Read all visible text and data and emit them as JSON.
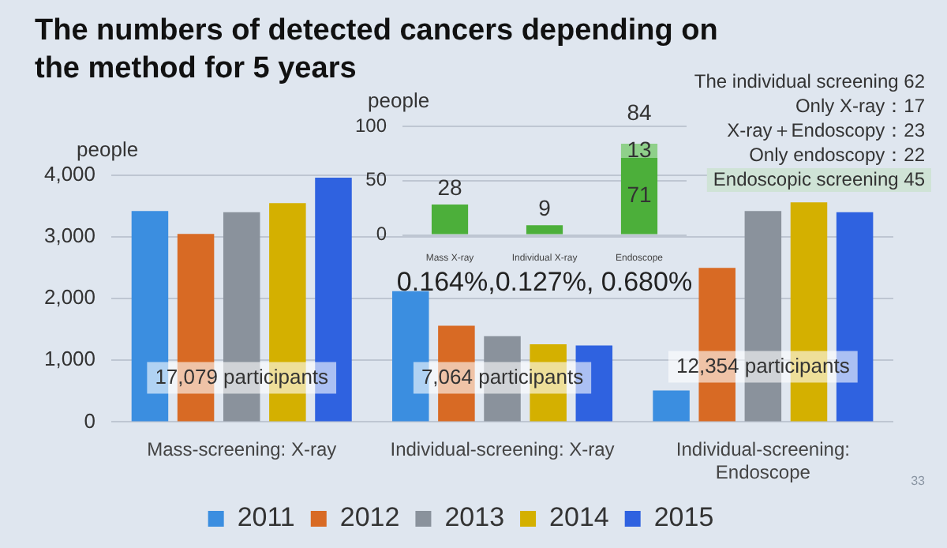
{
  "chart_data": [
    {
      "type": "bar",
      "title": "The numbers of detected cancers depending on the method for 5 years",
      "ylabel": "people",
      "categories": [
        "Mass-screening: X-ray",
        "Individual-screening: X-ray",
        "Individual-screening: Endoscope"
      ],
      "series": [
        {
          "name": "2011",
          "color": "#3b8ee0",
          "values": [
            3420,
            2120,
            510
          ]
        },
        {
          "name": "2012",
          "color": "#d86a24",
          "values": [
            3050,
            1560,
            2500
          ]
        },
        {
          "name": "2013",
          "color": "#8a929c",
          "values": [
            3400,
            1390,
            3420
          ]
        },
        {
          "name": "2014",
          "color": "#d4b000",
          "values": [
            3550,
            1260,
            3560
          ]
        },
        {
          "name": "2015",
          "color": "#2f62e0",
          "values": [
            3960,
            1240,
            3400
          ]
        }
      ],
      "ylim": [
        0,
        4000
      ],
      "yticks": [
        0,
        {
          "value": 1000,
          "label": "1,000"
        },
        {
          "value": 2000,
          "label": "2,000"
        },
        {
          "value": 3000,
          "label": "3,000"
        },
        {
          "value": 4000,
          "label": "4,000"
        }
      ],
      "grid": "y",
      "legend": "bottom",
      "annotations": [
        "17,079 participants",
        "7,064 participants",
        "12,354 participants",
        "33"
      ]
    },
    {
      "type": "bar",
      "stacked": true,
      "ylabel": "people",
      "categories": [
        "Mass X-ray",
        "Individual X-ray",
        "Endoscope"
      ],
      "series": [
        {
          "color": "#4caf3a",
          "values": [
            28,
            9,
            71
          ]
        },
        {
          "color": "#8fd08a",
          "values": [
            null,
            null,
            13
          ]
        }
      ],
      "ylim": [
        0,
        100
      ],
      "yticks": [
        0,
        50,
        100
      ],
      "grid": "y",
      "data_labels": true,
      "totals": [
        null,
        null,
        "84"
      ],
      "annotations": [
        "0.164%,0.127%, 0.680%",
        "The individual screening 62",
        "Only X-ray：17",
        "X-ray＋Endoscopy：23",
        "Only endoscopy：22",
        "Endoscopic screening 45"
      ]
    }
  ]
}
